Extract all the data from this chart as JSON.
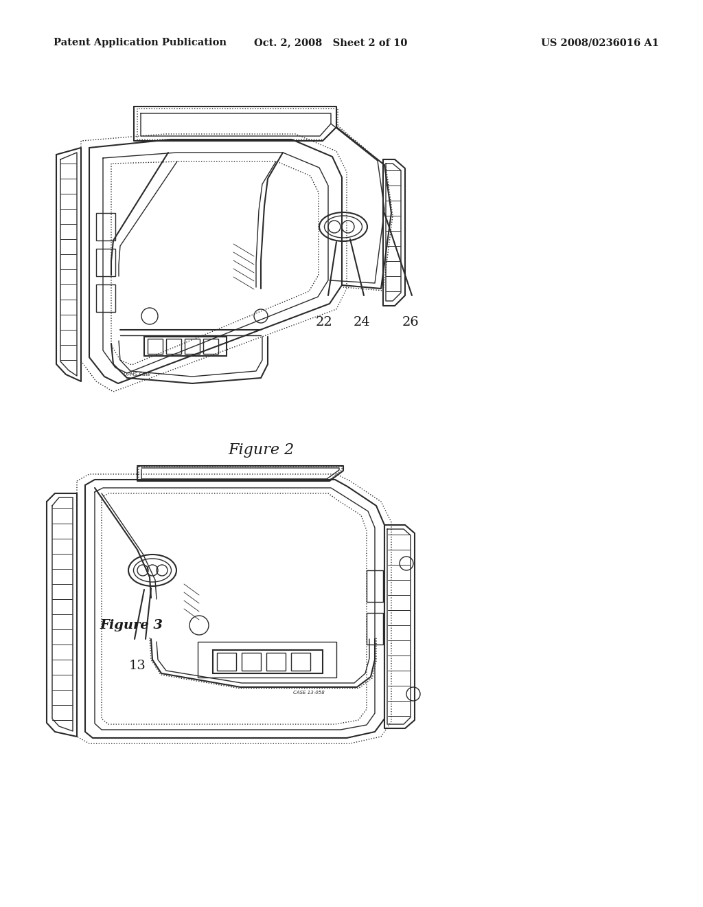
{
  "background_color": "#ffffff",
  "header_left": "Patent Application Publication",
  "header_center": "Oct. 2, 2008   Sheet 2 of 10",
  "header_right": "US 2008/0236016 A1",
  "fig2_caption": "Figure 2",
  "fig3_label": "Figure 3",
  "line_color": "#2a2a2a",
  "text_color": "#1a1a1a",
  "header_fontsize": 10.5,
  "caption_fontsize": 16,
  "label_fontsize": 14,
  "fig2_label22": "22",
  "fig2_label24": "24",
  "fig2_label26": "26",
  "fig3_label13": "13"
}
